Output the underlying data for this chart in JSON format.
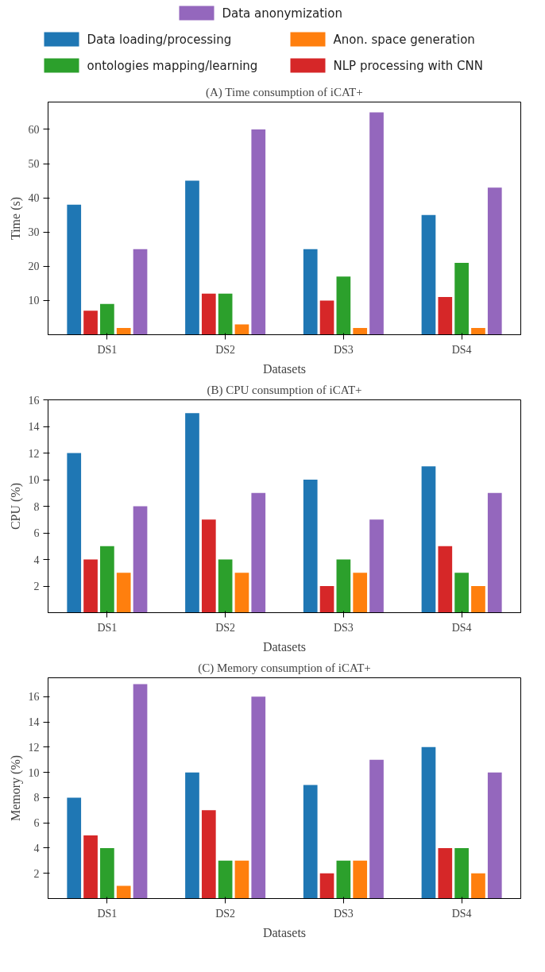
{
  "chart_data": [
    {
      "type": "bar",
      "title": "(A) Time consumption of iCAT+",
      "xlabel": "Datasets",
      "ylabel": "Time (s)",
      "categories": [
        "DS1",
        "DS2",
        "DS3",
        "DS4"
      ],
      "ylim": [
        0,
        68
      ],
      "yticks": [
        10,
        20,
        30,
        40,
        50,
        60
      ],
      "legend": "top",
      "grid": false,
      "series": [
        {
          "name": "Data loading/processing",
          "color": "#1f77b4",
          "values": [
            38,
            45,
            25,
            35
          ]
        },
        {
          "name": "NLP processing with CNN",
          "color": "#d62728",
          "values": [
            7,
            12,
            10,
            11
          ]
        },
        {
          "name": "ontologies mapping/learning",
          "color": "#2ca02c",
          "values": [
            9,
            12,
            17,
            21
          ]
        },
        {
          "name": "Anon. space generation",
          "color": "#ff7f0e",
          "values": [
            2,
            3,
            2,
            2
          ]
        },
        {
          "name": "Data anonymization",
          "color": "#9467bd",
          "values": [
            25,
            60,
            65,
            43
          ]
        }
      ]
    },
    {
      "type": "bar",
      "title": "(B) CPU consumption of iCAT+",
      "xlabel": "Datasets",
      "ylabel": "CPU (%)",
      "categories": [
        "DS1",
        "DS2",
        "DS3",
        "DS4"
      ],
      "ylim": [
        0,
        16
      ],
      "yticks": [
        2,
        4,
        6,
        8,
        10,
        12,
        14,
        16
      ],
      "grid": false,
      "series": [
        {
          "color": "#1f77b4",
          "values": [
            12,
            15,
            10,
            11
          ]
        },
        {
          "color": "#d62728",
          "values": [
            4,
            7,
            2,
            5
          ]
        },
        {
          "color": "#2ca02c",
          "values": [
            5,
            4,
            4,
            3
          ]
        },
        {
          "color": "#ff7f0e",
          "values": [
            3,
            3,
            3,
            2
          ]
        },
        {
          "color": "#9467bd",
          "values": [
            8,
            9,
            7,
            9
          ]
        }
      ]
    },
    {
      "type": "bar",
      "title": "(C) Memory consumption of iCAT+",
      "xlabel": "Datasets",
      "ylabel": "Memory (%)",
      "categories": [
        "DS1",
        "DS2",
        "DS3",
        "DS4"
      ],
      "ylim": [
        0,
        17.5
      ],
      "yticks": [
        2,
        4,
        6,
        8,
        10,
        12,
        14,
        16
      ],
      "grid": false,
      "series": [
        {
          "color": "#1f77b4",
          "values": [
            8,
            10,
            9,
            12
          ]
        },
        {
          "color": "#d62728",
          "values": [
            5,
            7,
            2,
            4
          ]
        },
        {
          "color": "#2ca02c",
          "values": [
            4,
            3,
            3,
            4
          ]
        },
        {
          "color": "#ff7f0e",
          "values": [
            1,
            3,
            3,
            2
          ]
        },
        {
          "color": "#9467bd",
          "values": [
            17,
            16,
            11,
            10
          ]
        }
      ]
    }
  ]
}
